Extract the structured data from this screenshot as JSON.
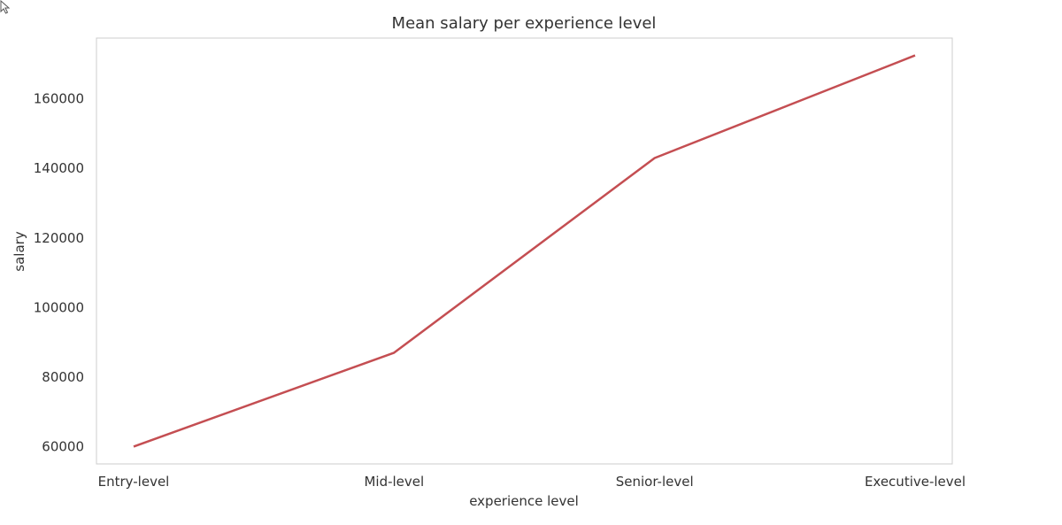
{
  "chart_data": {
    "type": "line",
    "title": "Mean salary per experience level",
    "xlabel": "experience level",
    "ylabel": "salary",
    "categories": [
      "Entry-level",
      "Mid-level",
      "Senior-level",
      "Executive-level"
    ],
    "series": [
      {
        "values": [
          60000,
          87000,
          143000,
          172500
        ],
        "color": "#c44e52"
      }
    ],
    "yticks": [
      60000,
      80000,
      100000,
      120000,
      140000,
      160000
    ],
    "ylim": [
      55000,
      177500
    ],
    "grid": false,
    "legend": "none"
  },
  "cursor": {
    "icon": "arrow-cursor-icon"
  }
}
